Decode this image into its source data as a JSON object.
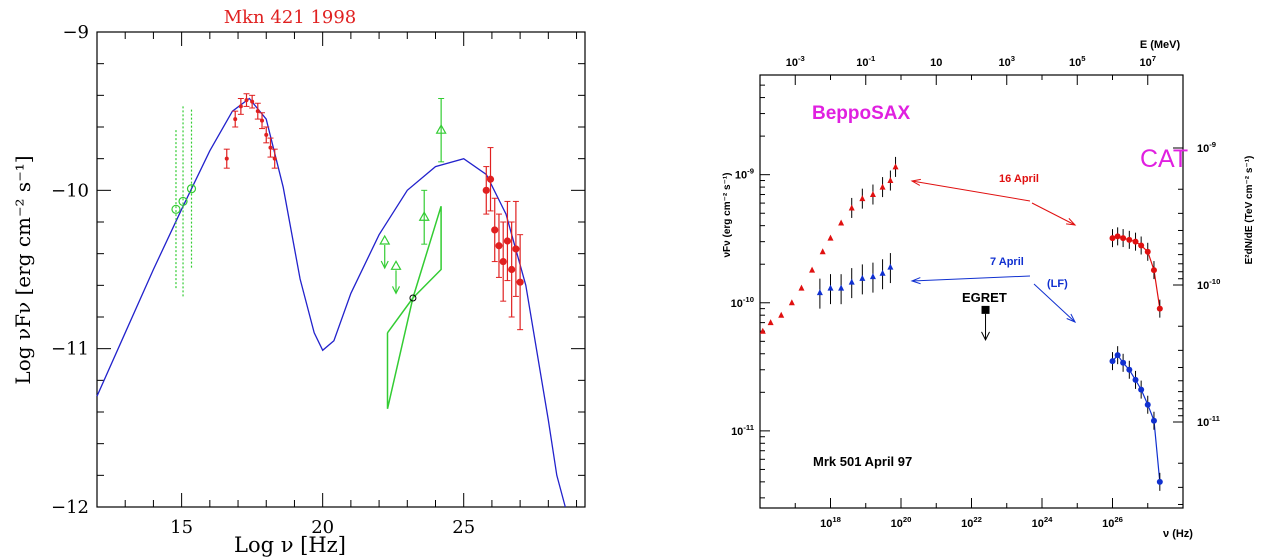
{
  "chart_data": [
    {
      "type": "scatter",
      "title": "Mkn 421 1998",
      "xlabel": "Log ν [Hz]",
      "ylabel": "Log νFν [erg cm⁻² s⁻¹]",
      "xlim": [
        12,
        29.3
      ],
      "ylim": [
        -12,
        -9
      ],
      "xticks": [
        15,
        20,
        25
      ],
      "xtick_labels": [
        "15",
        "20",
        "25"
      ],
      "yticks": [
        -12,
        -11,
        -10,
        -9
      ],
      "ytick_labels": [
        "−12",
        "−11",
        "−10",
        "−9"
      ],
      "colors": {
        "model": "#2222cc",
        "optical": "#33cc33",
        "gamma": "#33cc33",
        "xray": "#e02020",
        "tev": "#e02020",
        "title": "#e02020"
      },
      "series": [
        {
          "kind": "model",
          "x": [
            12,
            13,
            14,
            15,
            16,
            16.8,
            17.4,
            18,
            18.6,
            19.2,
            19.7,
            20,
            20.4,
            21,
            22,
            23,
            24,
            25,
            25.8,
            26.5,
            27.2,
            28,
            28.3,
            28.6
          ],
          "y": [
            -11.3,
            -10.9,
            -10.5,
            -10.12,
            -9.75,
            -9.5,
            -9.42,
            -9.55,
            -9.98,
            -10.56,
            -10.9,
            -11.01,
            -10.95,
            -10.65,
            -10.28,
            -10.0,
            -9.85,
            -9.8,
            -9.9,
            -10.15,
            -10.6,
            -11.45,
            -11.8,
            -12.0
          ]
        },
        {
          "kind": "optical",
          "x": [
            14.8,
            15.05,
            15.35
          ],
          "y": [
            -10.12,
            -10.07,
            -9.99
          ],
          "err": [
            0.5,
            0.6,
            0.5
          ]
        },
        {
          "kind": "xray",
          "x": [
            16.6,
            16.9,
            17.1,
            17.3,
            17.5,
            17.7,
            17.85,
            18.0,
            18.15,
            18.3
          ],
          "y": [
            -9.8,
            -9.55,
            -9.47,
            -9.43,
            -9.44,
            -9.5,
            -9.56,
            -9.65,
            -9.73,
            -9.8
          ],
          "err": [
            0.06,
            0.05,
            0.05,
            0.04,
            0.04,
            0.05,
            0.05,
            0.05,
            0.06,
            0.06
          ]
        },
        {
          "kind": "gamma",
          "x": [
            22.2,
            22.6,
            23.6,
            24.2
          ],
          "y": [
            -10.32,
            -10.48,
            -10.17,
            -9.62
          ],
          "err": [
            0.0,
            0.0,
            0.17,
            0.2
          ],
          "upper_limit": [
            true,
            true,
            false,
            false
          ]
        },
        {
          "kind": "tev",
          "x": [
            25.8,
            25.95,
            26.1,
            26.25,
            26.4,
            26.55,
            26.7,
            26.85,
            27.0
          ],
          "y": [
            -10.0,
            -9.93,
            -10.25,
            -10.35,
            -10.45,
            -10.32,
            -10.5,
            -10.37,
            -10.58
          ],
          "err": [
            0.15,
            0.2,
            0.2,
            0.2,
            0.25,
            0.25,
            0.3,
            0.3,
            0.3
          ]
        },
        {
          "kind": "bowtie",
          "x": [
            22.3,
            23.2,
            24.2,
            24.2,
            23.2,
            22.3,
            22.3
          ],
          "y": [
            -10.9,
            -10.68,
            -10.1,
            -10.5,
            -10.68,
            -11.38,
            -10.9
          ]
        },
        {
          "kind": "marker",
          "x": [
            23.2
          ],
          "y": [
            -10.68
          ]
        }
      ]
    },
    {
      "type": "scatter",
      "title": "",
      "xlabel": "ν (Hz)",
      "ylabel": "νFν (erg cm⁻² s⁻¹)",
      "top_xlabel": "E (MeV)",
      "right_ylabel": "E²dN/dE (TeV cm⁻² s⁻¹)",
      "x_scale": "log",
      "y_scale": "log",
      "xlim": [
        1e+16,
        1e+28
      ],
      "ylim": [
        2.5e-12,
        6e-09
      ],
      "xticks": [
        1e+18,
        1e+20,
        1e+22,
        1e+24,
        1e+26
      ],
      "xtick_labels": [
        {
          "b": "10",
          "e": "18"
        },
        {
          "b": "10",
          "e": "20"
        },
        {
          "b": "10",
          "e": "22"
        },
        {
          "b": "10",
          "e": "24"
        },
        {
          "b": "10",
          "e": "26"
        }
      ],
      "yticks": [
        1e-11,
        1e-10,
        1e-09
      ],
      "ytick_labels": [
        {
          "b": "10",
          "e": "-11"
        },
        {
          "b": "10",
          "e": "-10"
        },
        {
          "b": "10",
          "e": "-9"
        }
      ],
      "top_ticks_nu": [
        1e+17,
        1e+19,
        1e+21,
        1e+23,
        1e+25,
        1e+27
      ],
      "top_tick_labels": [
        {
          "b": "10",
          "e": "-3"
        },
        {
          "b": "10",
          "e": "-1"
        },
        {
          "b": "10",
          "e": ""
        },
        {
          "b": "10",
          "e": "3"
        },
        {
          "b": "10",
          "e": "5"
        },
        {
          "b": "10",
          "e": "7"
        }
      ],
      "right_ticks": [
        1e-09,
        1e-10,
        1e-11
      ],
      "right_tick_labels": [
        {
          "b": "10",
          "e": "-9"
        },
        {
          "b": "10",
          "e": "-10"
        },
        {
          "b": "10",
          "e": "-11"
        }
      ],
      "annotations": {
        "beppo": "BeppoSAX",
        "cat": "CAT",
        "april16": "16 April",
        "april7": "7 April",
        "lf": "(LF)",
        "egret": "EGRET",
        "caption": "Mrk 501 April 97"
      },
      "colors": {
        "red": "#e01010",
        "blue": "#1030d0",
        "magenta": "#e020e0",
        "black": "#000000"
      },
      "series": [
        {
          "name": "16 April",
          "x": [
            1.2e+16,
            2e+16,
            4e+16,
            8e+16,
            1.5e+17,
            3e+17,
            6e+17,
            1e+18,
            2e+18,
            4e+18,
            8e+18,
            1.6e+19,
            3e+19,
            5e+19,
            7e+19
          ],
          "y": [
            6e-11,
            7e-11,
            8e-11,
            1e-10,
            1.3e-10,
            1.8e-10,
            2.5e-10,
            3.2e-10,
            4.2e-10,
            5.5e-10,
            6.5e-10,
            7e-10,
            8e-10,
            9e-10,
            1.15e-09
          ]
        },
        {
          "name": "7 April",
          "x": [
            5e+17,
            1e+18,
            2e+18,
            4e+18,
            8e+18,
            1.6e+19,
            3e+19,
            5e+19
          ],
          "y": [
            1.2e-10,
            1.3e-10,
            1.3e-10,
            1.45e-10,
            1.55e-10,
            1.6e-10,
            1.7e-10,
            1.9e-10
          ]
        },
        {
          "name": "EGRET",
          "x": [
            2.5e+22
          ],
          "y": [
            8.8e-11
          ],
          "upper_limit": [
            true
          ]
        },
        {
          "name": "CAT 16 April",
          "x": [
            1e+26,
            1.4e+26,
            2e+26,
            3e+26,
            4.5e+26,
            6.5e+26,
            1e+27,
            1.5e+27,
            2.2e+27
          ],
          "y": [
            3.2e-10,
            3.3e-10,
            3.2e-10,
            3.1e-10,
            3e-10,
            2.8e-10,
            2.5e-10,
            1.8e-10,
            9e-11
          ]
        },
        {
          "name": "CAT 7 April",
          "x": [
            1e+26,
            1.4e+26,
            2e+26,
            3e+26,
            4.5e+26,
            6.5e+26,
            1e+27,
            1.5e+27,
            2.2e+27
          ],
          "y": [
            3.5e-11,
            3.9e-11,
            3.4e-11,
            3e-11,
            2.5e-11,
            2.1e-11,
            1.6e-11,
            1.2e-11,
            4e-12
          ]
        }
      ]
    }
  ]
}
